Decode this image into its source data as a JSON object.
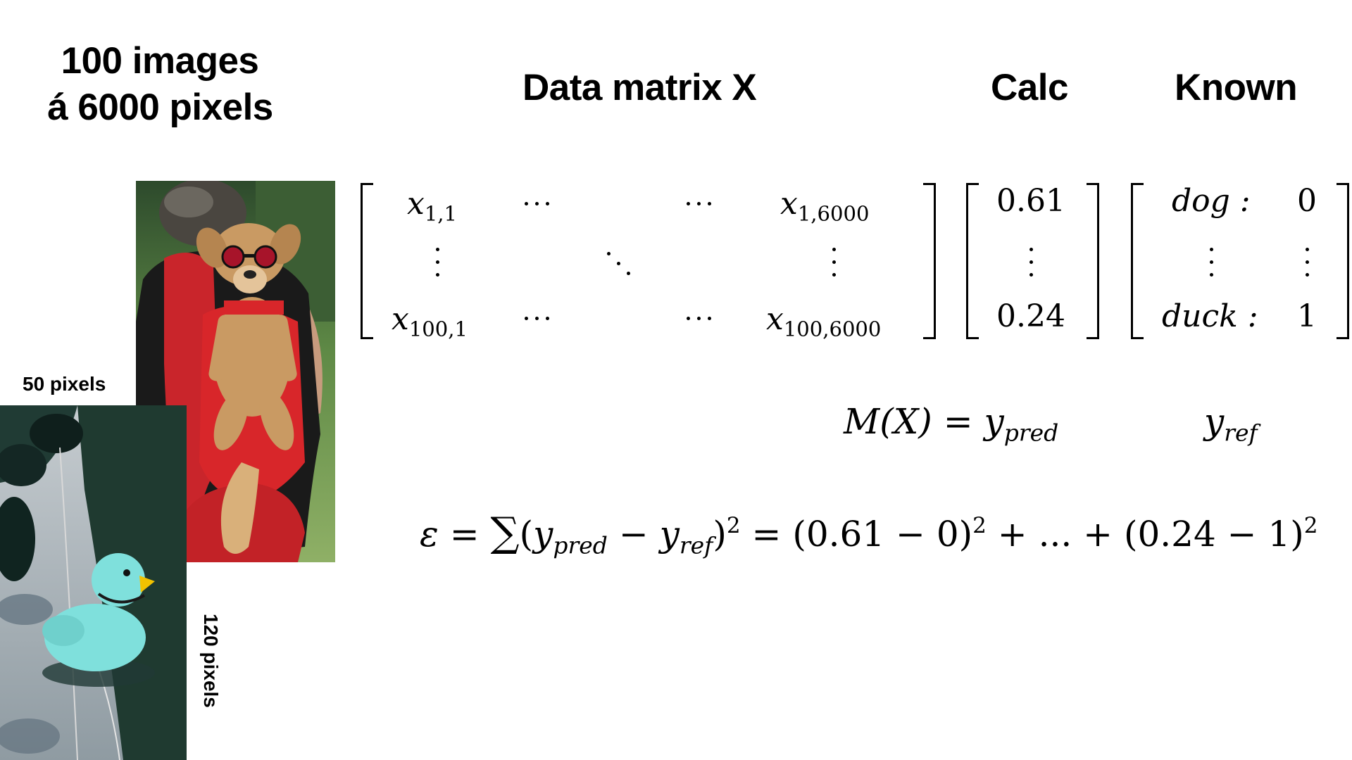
{
  "title": {
    "line1": "100 images",
    "line2": "á 6000 pixels"
  },
  "headers": {
    "data_matrix": "Data matrix X",
    "calc": "Calc",
    "known": "Known"
  },
  "image_labels": {
    "width": "50 pixels",
    "height": "120 pixels"
  },
  "matrix_x": {
    "first_row": {
      "first": {
        "base": "x",
        "sub": "1,1"
      },
      "last": {
        "base": "x",
        "sub": "1,6000"
      }
    },
    "last_row": {
      "first": {
        "base": "x",
        "sub": "100,1"
      },
      "last": {
        "base": "x",
        "sub": "100,6000"
      }
    }
  },
  "calc_vector": {
    "first": "0.61",
    "last": "0.24"
  },
  "known_vector": {
    "first_label": "dog :",
    "first_value": "0",
    "last_label": "duck :",
    "last_value": "1"
  },
  "model_equation": {
    "lhs": "M(X) = ",
    "y": "y",
    "sub": "pred"
  },
  "reference": {
    "y": "y",
    "sub": "ref"
  },
  "error_equation": {
    "epsilon": "ε",
    "eq1": " = ",
    "sum": "∑",
    "open": "(",
    "y1": "y",
    "sub1": "pred",
    "minus": " − ",
    "y2": "y",
    "sub2": "ref",
    "close": ")",
    "sup1": "2",
    "rest": " = (0.61 − 0)",
    "sup2": "2",
    "middle": " + ... + (0.24 − 1)",
    "sup3": "2"
  },
  "colors": {
    "text": "#000000",
    "background": "#ffffff",
    "duck": "#7fe0dc",
    "duck_beak": "#f2c200",
    "dog_harness": "#d8262a",
    "grass": "#4f8a3a"
  },
  "icons": {
    "dog_photo": "dog-in-backpack-photo",
    "duck_photo": "rubber-duck-photo"
  }
}
